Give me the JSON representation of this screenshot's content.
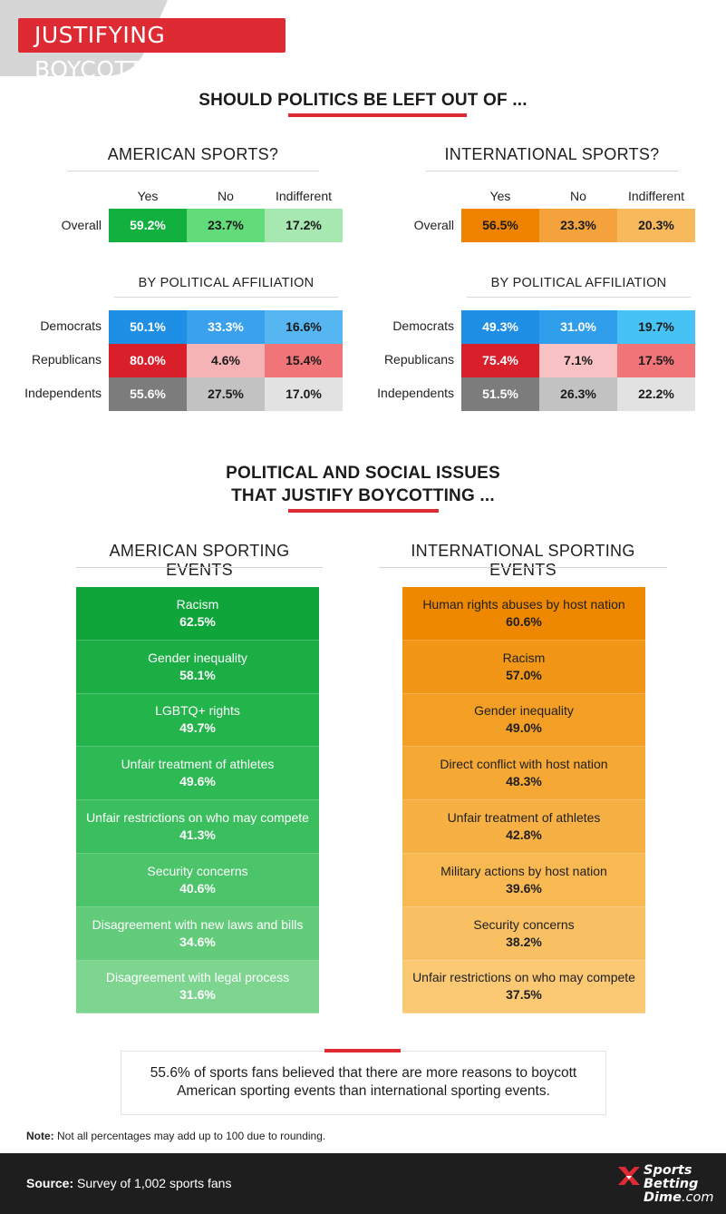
{
  "header": {
    "title": "JUSTIFYING BOYCOTTS"
  },
  "politics_section": {
    "title_pre": "SHOULD ",
    "title_mid": "POLITICS BE",
    "title_post": " LEFT OUT OF ...",
    "american": {
      "title": "AMERICAN SPORTS?",
      "columns": [
        "Yes",
        "No",
        "Indifferent"
      ],
      "overall_label": "Overall",
      "overall": [
        "59.2%",
        "23.7%",
        "17.2%"
      ],
      "affiliation_title": "BY POLITICAL AFFILIATION",
      "rows": [
        {
          "label": "Democrats",
          "values": [
            "50.1%",
            "33.3%",
            "16.6%"
          ]
        },
        {
          "label": "Republicans",
          "values": [
            "80.0%",
            "4.6%",
            "15.4%"
          ]
        },
        {
          "label": "Independents",
          "values": [
            "55.6%",
            "27.5%",
            "17.0%"
          ]
        }
      ]
    },
    "international": {
      "title": "INTERNATIONAL SPORTS?",
      "columns": [
        "Yes",
        "No",
        "Indifferent"
      ],
      "overall_label": "Overall",
      "overall": [
        "56.5%",
        "23.3%",
        "20.3%"
      ],
      "affiliation_title": "BY POLITICAL AFFILIATION",
      "rows": [
        {
          "label": "Democrats",
          "values": [
            "49.3%",
            "31.0%",
            "19.7%"
          ]
        },
        {
          "label": "Republicans",
          "values": [
            "75.4%",
            "7.1%",
            "17.5%"
          ]
        },
        {
          "label": "Independents",
          "values": [
            "51.5%",
            "26.3%",
            "22.2%"
          ]
        }
      ]
    }
  },
  "issues_section": {
    "title_line1": "POLITICAL AND SOCIAL ISSUES",
    "title_line2": "THAT JUSTIFY BOYCOTTING ...",
    "american": {
      "title": "AMERICAN SPORTING EVENTS",
      "items": [
        {
          "label": "Racism",
          "pct": "62.5%"
        },
        {
          "label": "Gender inequality",
          "pct": "58.1%"
        },
        {
          "label": "LGBTQ+ rights",
          "pct": "49.7%"
        },
        {
          "label": "Unfair treatment of athletes",
          "pct": "49.6%"
        },
        {
          "label": "Unfair restrictions on who may compete",
          "pct": "41.3%"
        },
        {
          "label": "Security concerns",
          "pct": "40.6%"
        },
        {
          "label": "Disagreement with new laws and bills",
          "pct": "34.6%"
        },
        {
          "label": "Disagreement with legal process",
          "pct": "31.6%"
        }
      ]
    },
    "international": {
      "title": "INTERNATIONAL SPORTING EVENTS",
      "items": [
        {
          "label": "Human rights abuses by host nation",
          "pct": "60.6%"
        },
        {
          "label": "Racism",
          "pct": "57.0%"
        },
        {
          "label": "Gender inequality",
          "pct": "49.0%"
        },
        {
          "label": "Direct conflict with host nation",
          "pct": "48.3%"
        },
        {
          "label": "Unfair treatment of athletes",
          "pct": "42.8%"
        },
        {
          "label": "Military actions by host nation",
          "pct": "39.6%"
        },
        {
          "label": "Security concerns",
          "pct": "38.2%"
        },
        {
          "label": "Unfair restrictions on who may compete",
          "pct": "37.5%"
        }
      ]
    }
  },
  "callout": {
    "line1": "55.6% of sports fans believed that there are more reasons to boycott",
    "line2": "American sporting events than international sporting events."
  },
  "note": {
    "label": "Note:",
    "text": " Not all percentages may add up to 100 due to rounding."
  },
  "footer": {
    "source_label": "Source:",
    "source_text": " Survey of 1,002 sports fans",
    "logo_line1": "Sports",
    "logo_line2": "Betting",
    "logo_line3": "Dime",
    "logo_domain": ".com"
  },
  "colors": {
    "accent_red": "#de2a33",
    "green_shades": [
      "#0fa53a",
      "#1aae44",
      "#24b44c",
      "#2db953",
      "#3bbf5e",
      "#4cc56a",
      "#62cc7b",
      "#7ed590"
    ],
    "orange_shades": [
      "#ee8800",
      "#f19616",
      "#f39f26",
      "#f5a834",
      "#f7b043",
      "#f8b852",
      "#f9c063",
      "#fbc874"
    ]
  }
}
